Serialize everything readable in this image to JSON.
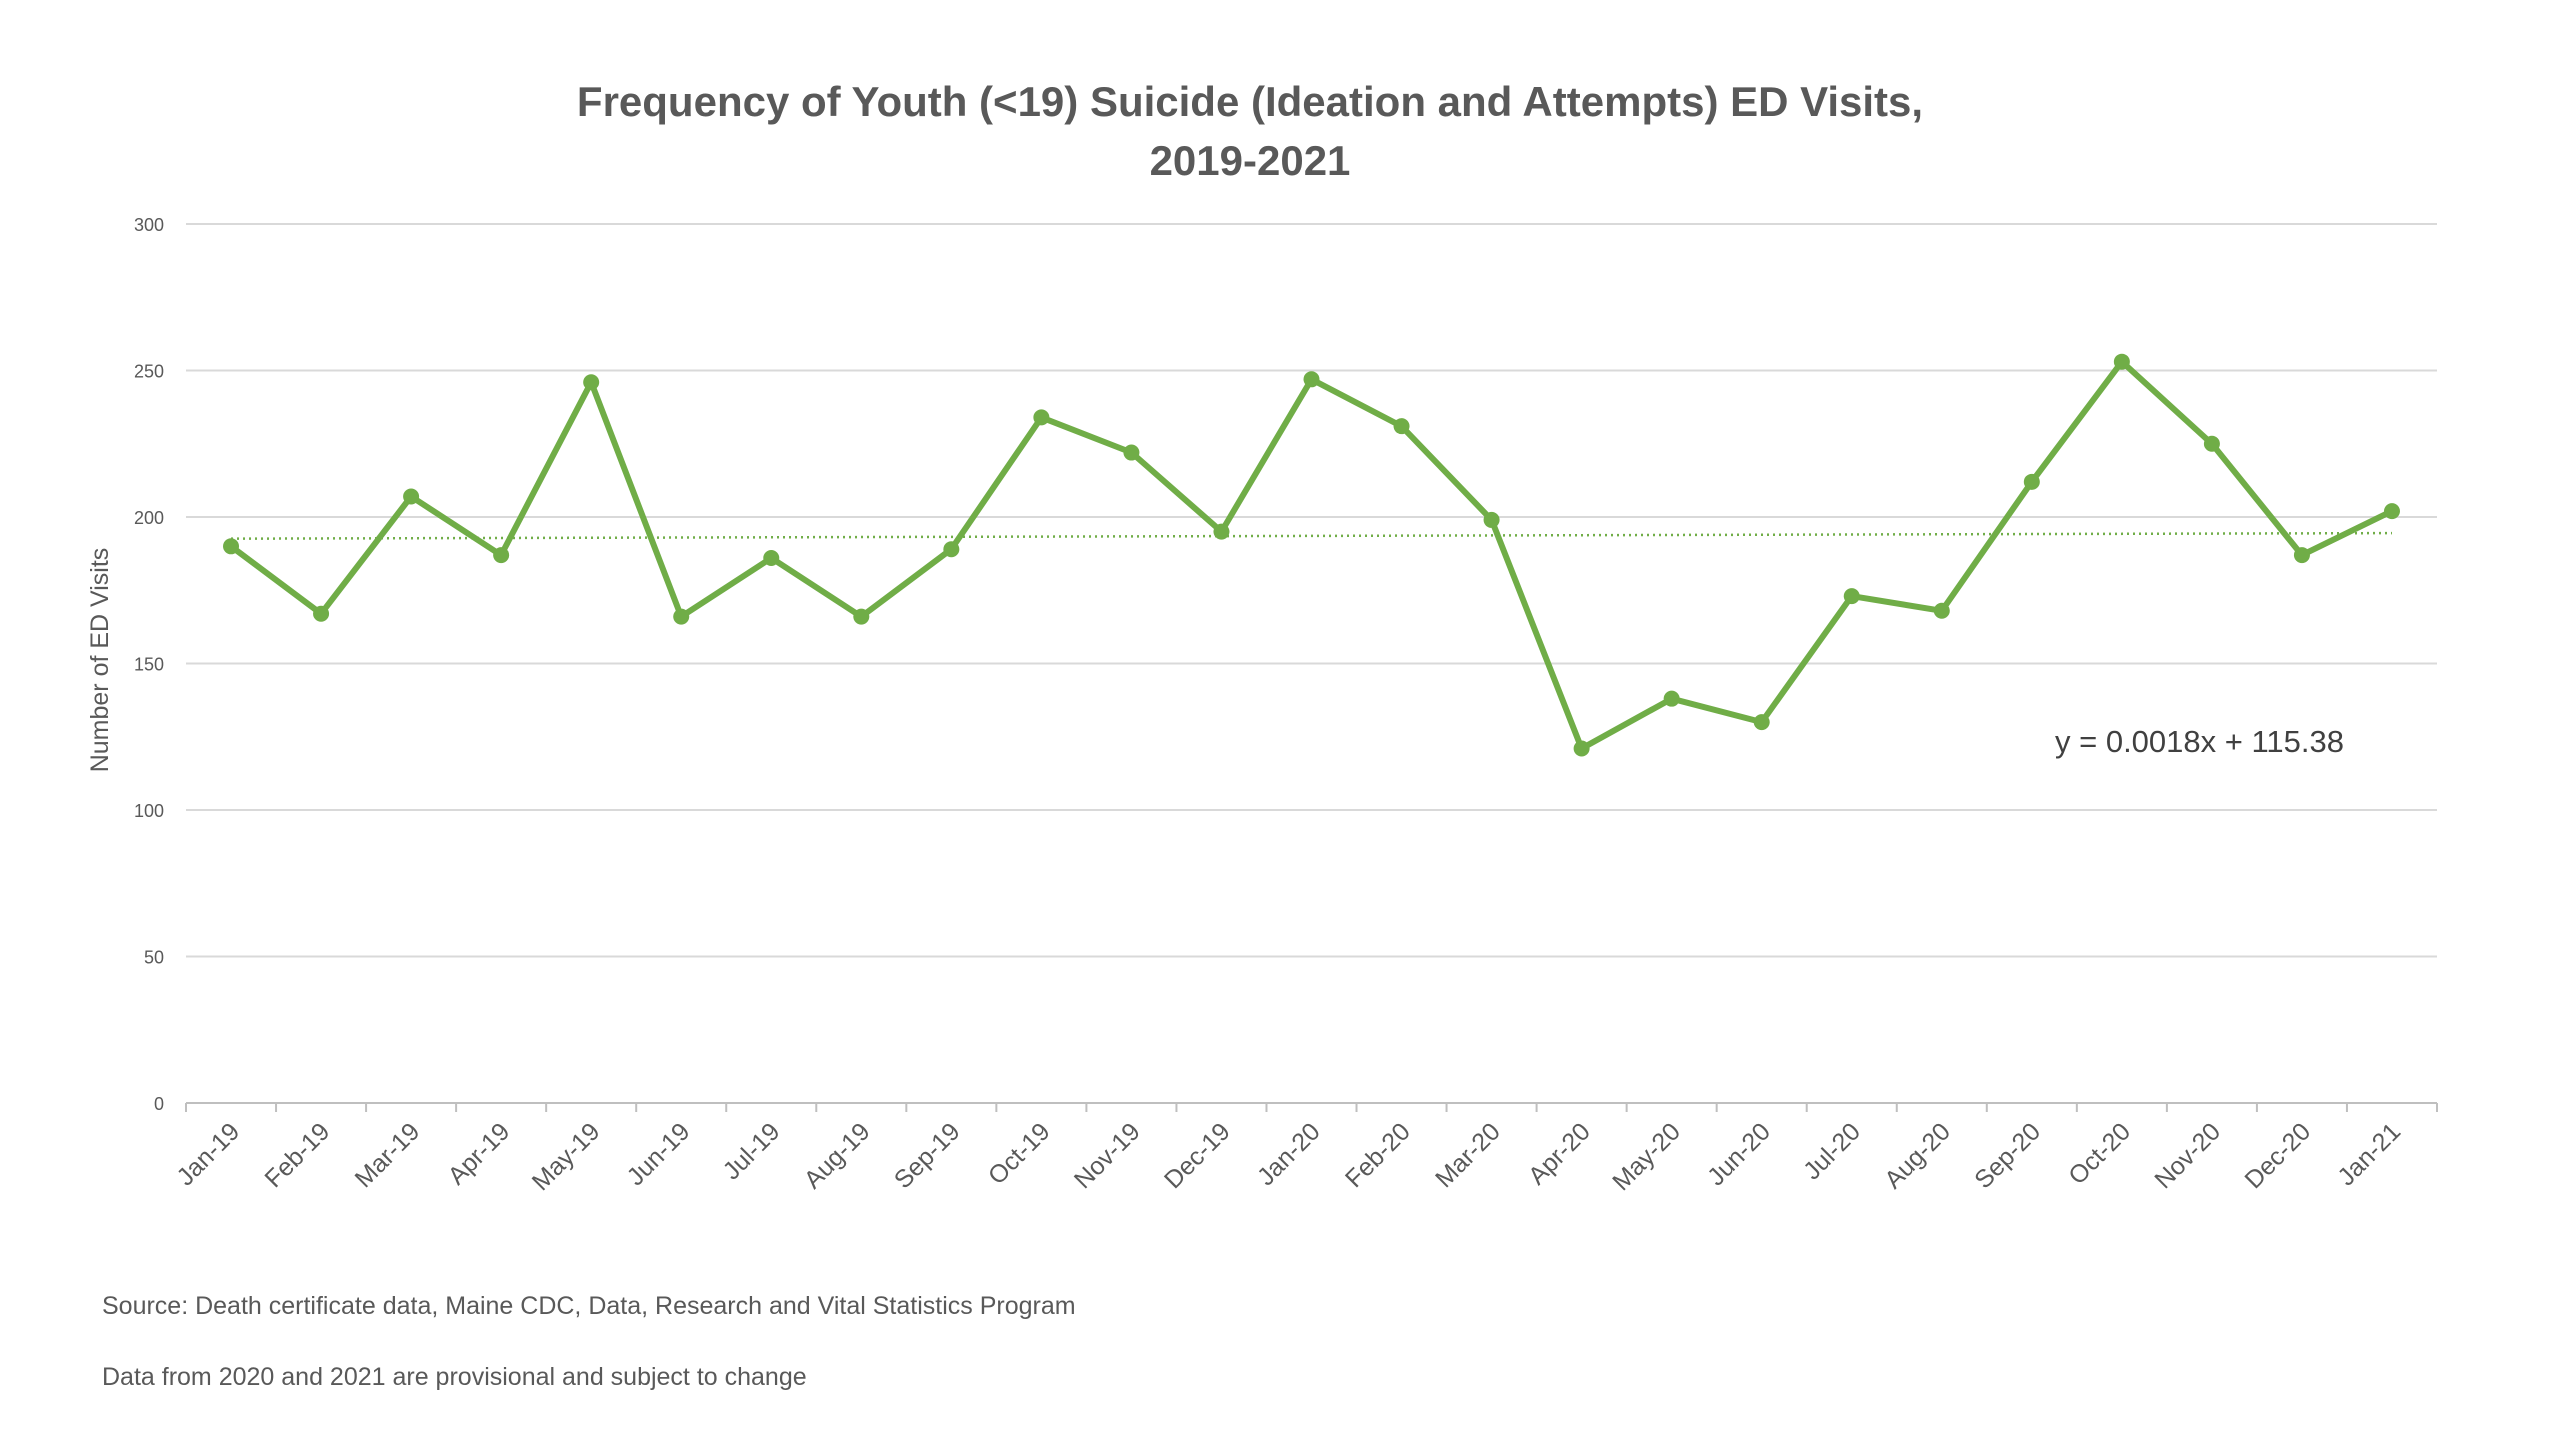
{
  "chart_data": {
    "type": "line",
    "title": [
      "Frequency of Youth (<19) Suicide (Ideation and Attempts)  ED Visits,",
      "2019-2021"
    ],
    "xlabel": "",
    "ylabel": "Number of ED Visits",
    "ylim": [
      0,
      300
    ],
    "yticks": [
      0,
      50,
      100,
      150,
      200,
      250,
      300
    ],
    "grid": true,
    "categories": [
      "Jan-19",
      "Feb-19",
      "Mar-19",
      "Apr-19",
      "May-19",
      "Jun-19",
      "Jul-19",
      "Aug-19",
      "Sep-19",
      "Oct-19",
      "Nov-19",
      "Dec-19",
      "Jan-20",
      "Feb-20",
      "Mar-20",
      "Apr-20",
      "May-20",
      "Jun-20",
      "Jul-20",
      "Aug-20",
      "Sep-20",
      "Oct-20",
      "Nov-20",
      "Dec-20",
      "Jan-21"
    ],
    "series": [
      {
        "values": [
          190,
          167,
          207,
          187,
          246,
          166,
          186,
          166,
          189,
          234,
          222,
          195,
          247,
          231,
          199,
          121,
          138,
          130,
          173,
          168,
          212,
          253,
          225,
          187,
          202
        ],
        "color": "#70ad47"
      }
    ],
    "trendline": {
      "type": "linear",
      "equation": "y = 0.0018x + 115.38",
      "start": 192.6,
      "end": 194.5,
      "color": "#70ad47",
      "style": "dotted"
    }
  },
  "notes": {
    "source": "Source: Death certificate data, Maine CDC, Data, Research and Vital Statistics Program",
    "provisional": "Data from 2020 and 2021 are provisional and subject to change"
  }
}
